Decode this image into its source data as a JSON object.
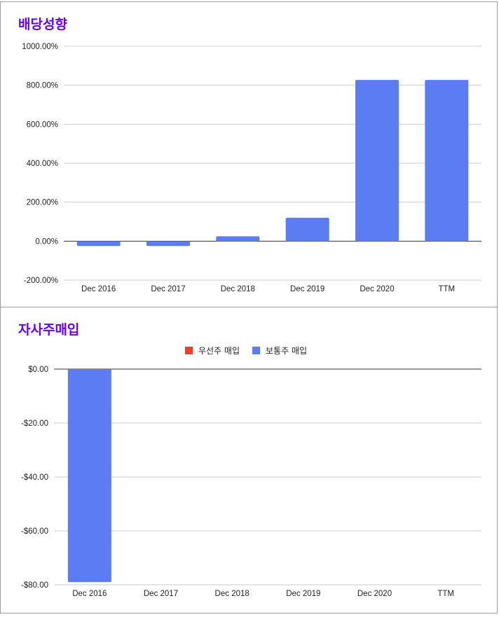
{
  "chart_data": [
    {
      "type": "bar",
      "title": "배당성향",
      "categories": [
        "Dec 2016",
        "Dec 2017",
        "Dec 2018",
        "Dec 2019",
        "Dec 2020",
        "TTM"
      ],
      "series": [
        {
          "values": [
            -25,
            -25,
            25,
            120,
            827,
            827
          ],
          "color": "#5b7cf2"
        }
      ],
      "ylim": [
        -200,
        1000
      ],
      "yticks": [
        -200,
        0,
        200,
        400,
        600,
        800,
        1000
      ],
      "ytick_labels": [
        "-200.00%",
        "0.00%",
        "200.00%",
        "400.00%",
        "600.00%",
        "800.00%",
        "1000.00%"
      ],
      "grid": true
    },
    {
      "type": "bar",
      "title": "자사주매입",
      "categories": [
        "Dec 2016",
        "Dec 2017",
        "Dec 2018",
        "Dec 2019",
        "Dec 2020",
        "TTM"
      ],
      "series": [
        {
          "name": "우선주 매입",
          "values": [
            0,
            0,
            0,
            0,
            0,
            0
          ],
          "color": "#e8412c"
        },
        {
          "name": "보통주 매입",
          "values": [
            -79,
            0,
            0,
            0,
            0,
            0
          ],
          "color": "#5b7cf2"
        }
      ],
      "ylim": [
        -80,
        0
      ],
      "yticks": [
        -80,
        -60,
        -40,
        -20,
        0
      ],
      "ytick_labels": [
        "-$80.00",
        "-$60.00",
        "-$40.00",
        "-$20.00",
        "$0.00"
      ],
      "legend_position": "top",
      "grid": true
    }
  ]
}
